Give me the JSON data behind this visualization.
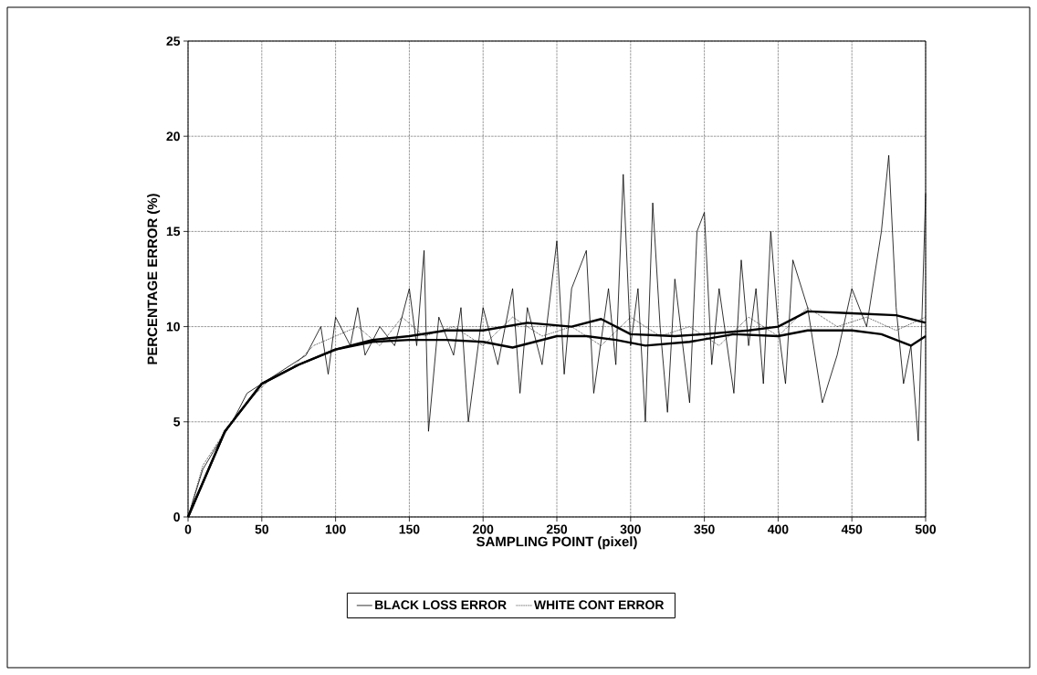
{
  "chart_data": {
    "type": "line",
    "xlabel": "SAMPLING POINT (pixel)",
    "ylabel": "PERCENTAGE ERROR (%)",
    "xlim": [
      0,
      500
    ],
    "ylim": [
      0,
      25
    ],
    "xticks": [
      0,
      50,
      100,
      150,
      200,
      250,
      300,
      350,
      400,
      450,
      500
    ],
    "yticks": [
      0,
      5,
      10,
      15,
      20,
      25
    ],
    "grid": true,
    "legend": "bottom",
    "marker": "none",
    "series": [
      {
        "name": "BLACK LOSS ERROR",
        "color": "#000000",
        "line_style": "solid",
        "x": [
          0,
          10,
          20,
          30,
          40,
          50,
          60,
          70,
          80,
          90,
          95,
          100,
          110,
          115,
          120,
          130,
          140,
          150,
          155,
          160,
          163,
          170,
          180,
          185,
          190,
          200,
          210,
          220,
          225,
          230,
          240,
          250,
          255,
          260,
          270,
          275,
          285,
          290,
          295,
          300,
          305,
          310,
          315,
          320,
          325,
          330,
          340,
          345,
          350,
          355,
          360,
          370,
          375,
          380,
          385,
          390,
          395,
          400,
          405,
          410,
          420,
          430,
          440,
          450,
          460,
          470,
          475,
          480,
          485,
          490,
          495,
          500
        ],
        "values": [
          0,
          2.5,
          3.8,
          5,
          6.5,
          7,
          7.5,
          8,
          8.5,
          10,
          7.5,
          10.5,
          9,
          11,
          8.5,
          10,
          9,
          12,
          9,
          14,
          4.5,
          10.5,
          8.5,
          11,
          5,
          11,
          8,
          12,
          6.5,
          11,
          8,
          14.5,
          7.5,
          12,
          14,
          6.5,
          12,
          8,
          18,
          9,
          12,
          5,
          16.5,
          10,
          5.5,
          12.5,
          6,
          15,
          16,
          8,
          12,
          6.5,
          13.5,
          9,
          12,
          7,
          15,
          10,
          7,
          13.5,
          11,
          6,
          8.5,
          12,
          10,
          15,
          19,
          11,
          7,
          9,
          4,
          17
        ]
      },
      {
        "name": "WHITE CONT ERROR",
        "color": "#000000",
        "line_style": "dotted",
        "x": [
          0,
          10,
          25,
          40,
          55,
          70,
          85,
          100,
          115,
          130,
          145,
          160,
          180,
          200,
          220,
          240,
          260,
          280,
          300,
          320,
          340,
          360,
          380,
          400,
          420,
          440,
          460,
          480,
          500
        ],
        "values": [
          0,
          2.7,
          4.5,
          6,
          7.2,
          7.8,
          9,
          9.5,
          10,
          9,
          10.5,
          9.5,
          10,
          9,
          10.5,
          9.5,
          10,
          9,
          10.5,
          9.5,
          10,
          9,
          10.5,
          9.5,
          11,
          10,
          10.5,
          9.8,
          10.5
        ]
      },
      {
        "color": "#000000",
        "line_style": "solid",
        "x": [
          0,
          25,
          50,
          75,
          100,
          125,
          150,
          175,
          200,
          230,
          260,
          280,
          300,
          330,
          350,
          380,
          400,
          420,
          450,
          480,
          500
        ],
        "values": [
          0,
          4.5,
          7,
          8,
          8.8,
          9.3,
          9.5,
          9.8,
          9.8,
          10.2,
          10,
          10.4,
          9.6,
          9.5,
          9.6,
          9.8,
          10,
          10.8,
          10.7,
          10.6,
          10.2
        ]
      },
      {
        "color": "#000000",
        "line_style": "solid",
        "x": [
          0,
          25,
          50,
          75,
          100,
          125,
          150,
          175,
          200,
          220,
          250,
          270,
          290,
          310,
          340,
          370,
          400,
          420,
          450,
          470,
          490,
          500
        ],
        "values": [
          0,
          4.5,
          7,
          8,
          8.8,
          9.2,
          9.3,
          9.3,
          9.2,
          8.9,
          9.5,
          9.5,
          9.3,
          9,
          9.2,
          9.6,
          9.5,
          9.8,
          9.8,
          9.6,
          9.0,
          9.5
        ]
      }
    ]
  }
}
